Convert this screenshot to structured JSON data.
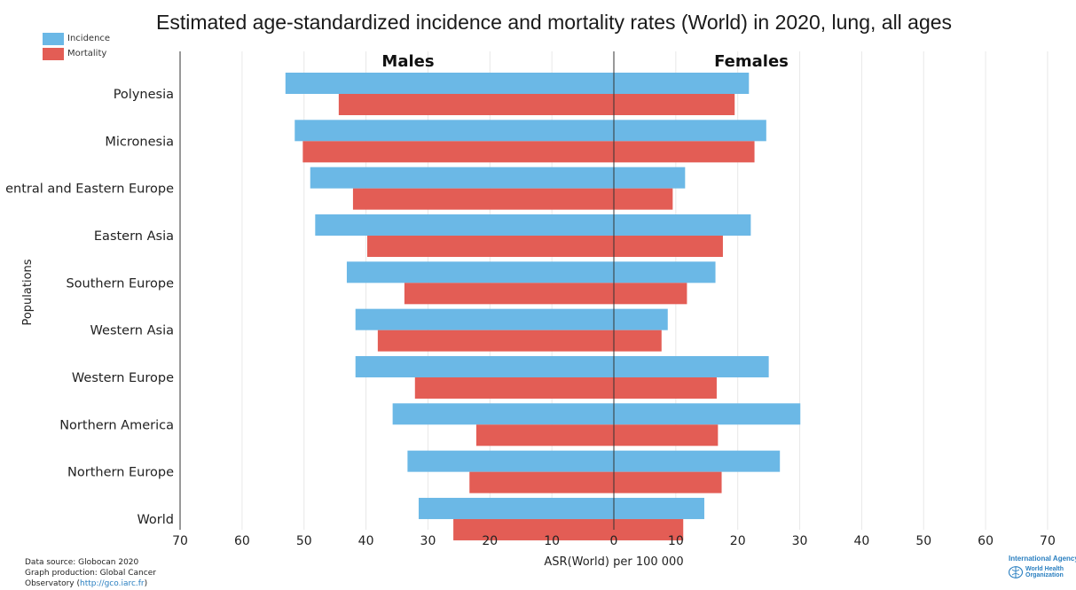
{
  "title": "Estimated age-standardized incidence and mortality rates (World) in 2020, lung, all ages",
  "legend": {
    "incidence_label": "Incidence",
    "mortality_label": "Mortality"
  },
  "colors": {
    "incidence": "#6bb8e6",
    "mortality": "#e35d55"
  },
  "footer": {
    "line1": "Data source: Globocan 2020",
    "line2": "Graph production: Global Cancer",
    "line3_prefix": "Observatory (",
    "line3_link": "http://gco.iarc.fr",
    "line3_suffix": ")"
  },
  "logo": {
    "iarc": "International Agency f",
    "who_line1": "World Health",
    "who_line2": "Organization"
  },
  "chart_data": {
    "type": "bar",
    "orientation": "horizontal-population-pyramid",
    "panels": [
      "Males",
      "Females"
    ],
    "xlabel": "ASR(World) per 100 000",
    "ylabel": "Populations",
    "xlim": [
      0,
      70
    ],
    "xticks": [
      70,
      60,
      50,
      40,
      30,
      20,
      10,
      0,
      10,
      20,
      30,
      40,
      50,
      60,
      70
    ],
    "categories": [
      "Polynesia",
      "Micronesia",
      "entral and Eastern Europe",
      "Eastern Asia",
      "Southern Europe",
      "Western Asia",
      "Western Europe",
      "Northern America",
      "Northern Europe",
      "World"
    ],
    "series": [
      {
        "name": "Incidence",
        "sex": "Males",
        "values": [
          53.0,
          51.5,
          49.0,
          48.2,
          43.1,
          41.7,
          41.7,
          35.7,
          33.3,
          31.5
        ]
      },
      {
        "name": "Mortality",
        "sex": "Males",
        "values": [
          44.4,
          50.2,
          42.1,
          39.8,
          33.8,
          38.1,
          32.1,
          22.2,
          23.3,
          25.9
        ]
      },
      {
        "name": "Incidence",
        "sex": "Females",
        "values": [
          21.8,
          24.6,
          11.5,
          22.1,
          16.4,
          8.7,
          25.0,
          30.1,
          26.8,
          14.6
        ]
      },
      {
        "name": "Mortality",
        "sex": "Females",
        "values": [
          19.5,
          22.7,
          9.5,
          17.6,
          11.8,
          7.7,
          16.6,
          16.8,
          17.4,
          11.2
        ]
      }
    ],
    "grid": true,
    "legend_position": "top-left"
  }
}
